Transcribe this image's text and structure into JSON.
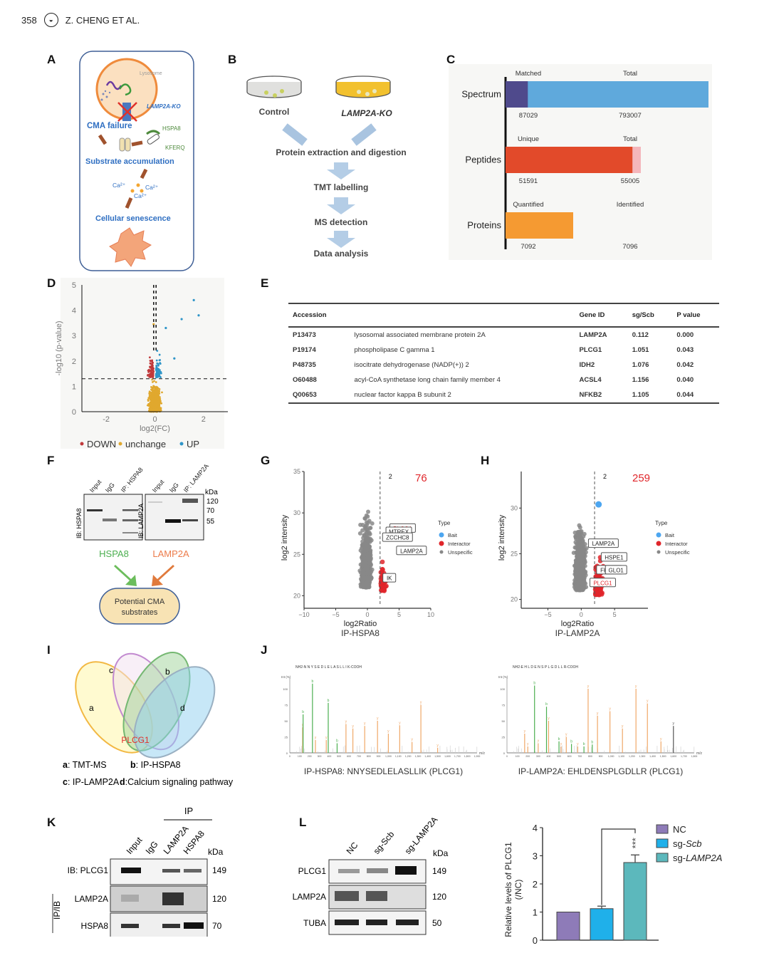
{
  "header": {
    "page_number": "358",
    "journal_icon": "journal-logo-icon",
    "authors": "Z. CHENG ET AL."
  },
  "panels": {
    "A": {
      "label": "A",
      "lysosome": "Lysosome",
      "ko": "LAMP2A-KO",
      "cma_failure": "CMA failure",
      "hspa8": "HSPA8",
      "kferq": "KFERQ",
      "substrate": "Substrate accumulation",
      "ca": "Ca²⁺",
      "senescence": "Cellular senescence"
    },
    "B": {
      "label": "B",
      "control": "Control",
      "ko": "LAMP2A-KO",
      "steps": [
        "Protein extraction and digestion",
        "TMT labelling",
        "MS detection",
        "Data analysis"
      ]
    },
    "C": {
      "label": "C"
    },
    "D": {
      "label": "D"
    },
    "E": {
      "label": "E",
      "columns": [
        "Accession",
        "",
        "Gene ID",
        "sg/Scb",
        "P value"
      ],
      "rows": [
        [
          "P13473",
          "lysosomal associated membrane protein 2A",
          "LAMP2A",
          "0.112",
          "0.000"
        ],
        [
          "P19174",
          "phospholipase C gamma 1",
          "PLCG1",
          "1.051",
          "0.043"
        ],
        [
          "P48735",
          "isocitrate dehydrogenase (NADP(+)) 2",
          "IDH2",
          "1.076",
          "0.042"
        ],
        [
          "O60488",
          "acyl-CoA synthetase long chain family member 4",
          "ACSL4",
          "1.156",
          "0.040"
        ],
        [
          "Q00653",
          "nuclear factor kappa B subunit 2",
          "NFKB2",
          "1.105",
          "0.044"
        ]
      ]
    },
    "F": {
      "label": "F",
      "blot1_lanes": [
        "Input",
        "IgG",
        "IP: HSPA8"
      ],
      "blot1_ib": "IB: HSPA8",
      "blot2_lanes": [
        "Input",
        "IgG",
        "IP: LAMP2A"
      ],
      "blot2_ib": "IB: LAMP2A",
      "kda": "kDa",
      "markers": [
        "120",
        "70",
        "55"
      ],
      "hspa8": "HSPA8",
      "lamp2a": "LAMP2A",
      "box_line1": "Potential CMA",
      "box_line2": "substrates"
    },
    "G": {
      "label": "G"
    },
    "H": {
      "label": "H"
    },
    "I": {
      "label": "I",
      "sets": [
        "a",
        "b",
        "c",
        "d"
      ],
      "center": "PLCG1",
      "legend": [
        {
          "key": "a",
          "text": ": TMT-MS"
        },
        {
          "key": "b",
          "text": ": IP-HSPA8"
        },
        {
          "key": "c",
          "text": ": IP-LAMP2A"
        },
        {
          "key": "d",
          "text": ":Calcium signaling pathway"
        }
      ]
    },
    "J": {
      "label": "J",
      "left_caption": "IP-HSPA8: NNYSEDLELASLLIK (PLCG1)",
      "right_caption": "IP-LAMP2A: EHLDENSPLGDLLR (PLCG1)",
      "left_seq": "NH2-N N Y S E D L E L A S L L I K-COOH",
      "right_seq": "NH2-E H L D E N S P L G D L L R-COOH",
      "xunit": "m/z",
      "yunit": "Int (%)"
    },
    "K": {
      "label": "K",
      "ip": "IP",
      "lanes": [
        "Input",
        "IgG",
        "LAMP2A",
        "HSPA8"
      ],
      "kda": "kDa",
      "rows": [
        {
          "name": "IB: PLCG1",
          "kda": "149"
        },
        {
          "name": "LAMP2A",
          "kda": "120"
        },
        {
          "name": "HSPA8",
          "kda": "70"
        }
      ],
      "ipib": "IP/IB"
    },
    "L": {
      "label": "L",
      "lanes": [
        "NC",
        "sg-Scb",
        "sg-LAMP2A"
      ],
      "kda": "kDa",
      "rows": [
        {
          "name": "PLCG1",
          "kda": "149"
        },
        {
          "name": "LAMP2A",
          "kda": "120"
        },
        {
          "name": "TUBA",
          "kda": "50"
        }
      ]
    }
  },
  "chart_data": [
    {
      "id": "C",
      "type": "bar",
      "orientation": "horizontal",
      "categories": [
        "Spectrum",
        "Peptides",
        "Proteins"
      ],
      "series": [
        {
          "name": "Matched / Unique / Quantified",
          "labels": [
            "Matched",
            "Unique",
            "Quantified"
          ],
          "values": [
            87029,
            51591,
            7092
          ],
          "colors": [
            "#4f4a8c",
            "#e24a2a",
            "#f59a32"
          ]
        },
        {
          "name": "Total / Total / Identified",
          "labels": [
            "Total",
            "Total",
            "Identified"
          ],
          "values": [
            793007,
            55005,
            7096
          ],
          "colors": [
            "#5fa9dc",
            "#f4b6bb",
            "#f59a32"
          ]
        }
      ],
      "note": "each bar scaled within its own row"
    },
    {
      "id": "D",
      "type": "scatter",
      "title": "",
      "xlabel": "log2(FC)",
      "ylabel": "-log10 (p-value)",
      "xlim": [
        -3,
        3
      ],
      "ylim": [
        0,
        5
      ],
      "xticks": [
        -2,
        0,
        2
      ],
      "yticks": [
        0,
        1,
        2,
        3,
        4,
        5
      ],
      "threshold_y": 1.3,
      "legend": [
        {
          "name": "DOWN",
          "color": "#c0393b"
        },
        {
          "name": "unchange",
          "color": "#e0a82e"
        },
        {
          "name": "UP",
          "color": "#2f95c8"
        }
      ],
      "highlighted_points": [
        [
          1.6,
          4.4
        ],
        [
          1.8,
          3.8
        ],
        [
          1.1,
          3.65
        ],
        [
          0.45,
          3.3
        ],
        [
          0.8,
          2.1
        ],
        [
          -0.05,
          3.45
        ]
      ]
    },
    {
      "id": "G",
      "type": "scatter",
      "subtitle": "IP-HSPA8",
      "xlabel": "log2Ratio",
      "ylabel": "log2 intensity",
      "xlim": [
        -10,
        10
      ],
      "ylim": [
        19,
        35
      ],
      "xticks": [
        -10,
        -5,
        0,
        5,
        10
      ],
      "yticks": [
        20,
        25,
        30,
        35
      ],
      "threshold_x": 2,
      "threshold_label": "2",
      "count": "76",
      "legend_title": "Type",
      "legend": [
        {
          "name": "Bait",
          "color": "#4da6f0"
        },
        {
          "name": "Interactor",
          "color": "#e0262b"
        },
        {
          "name": "Unspecific",
          "color": "#888888"
        }
      ],
      "bait": [
        8.3,
        25.3
      ],
      "labels": [
        {
          "text": "PLCG1",
          "x": 6.9,
          "y": 28.0,
          "red": true
        },
        {
          "text": "MTREX",
          "x": 6.3,
          "y": 27.6,
          "red": false
        },
        {
          "text": "ZCCHC8",
          "x": 6.1,
          "y": 26.9,
          "red": false
        },
        {
          "text": "LAMP2A",
          "x": 8.3,
          "y": 25.3,
          "red": false
        },
        {
          "text": "IK",
          "x": 4.8,
          "y": 22.0,
          "red": false
        }
      ]
    },
    {
      "id": "H",
      "type": "scatter",
      "subtitle": "IP-LAMP2A",
      "xlabel": "log2Ratio",
      "ylabel": "log2 intensity",
      "xlim": [
        -9,
        10
      ],
      "ylim": [
        19.5,
        34
      ],
      "xticks": [
        -5,
        0,
        5
      ],
      "yticks": [
        20,
        25,
        30
      ],
      "threshold_x": 2,
      "threshold_label": "2",
      "count": "259",
      "legend_title": "Type",
      "legend": [
        {
          "name": "Bait",
          "color": "#4da6f0"
        },
        {
          "name": "Interactor",
          "color": "#e0262b"
        },
        {
          "name": "Unspecific",
          "color": "#888888"
        }
      ],
      "bait": [
        2.6,
        30.4
      ],
      "labels": [
        {
          "text": "LAMP2A",
          "x": 4.6,
          "y": 26.0,
          "red": false
        },
        {
          "text": "HSPE1",
          "x": 6.2,
          "y": 24.5,
          "red": false
        },
        {
          "text": "FKBP4",
          "x": 5.5,
          "y": 23.1,
          "red": false
        },
        {
          "text": "GLO1",
          "x": 6.5,
          "y": 23.1,
          "red": false
        },
        {
          "text": "PLCG1",
          "x": 4.5,
          "y": 21.7,
          "red": true
        }
      ]
    },
    {
      "id": "J-left",
      "type": "bar",
      "xlabel": "m/z",
      "xlim": [
        0,
        1900
      ],
      "ylim": [
        0,
        110
      ],
      "peaks": [
        [
          130,
          40,
          "o"
        ],
        [
          135,
          60,
          "g"
        ],
        [
          230,
          108,
          "g"
        ],
        [
          260,
          20,
          "o"
        ],
        [
          370,
          20,
          "o"
        ],
        [
          390,
          78,
          "g"
        ],
        [
          480,
          15,
          "g"
        ],
        [
          570,
          45,
          "o"
        ],
        [
          640,
          38,
          "o"
        ],
        [
          760,
          42,
          "o"
        ],
        [
          890,
          50,
          "o"
        ],
        [
          1000,
          30,
          "o"
        ],
        [
          1115,
          43,
          "o"
        ],
        [
          1240,
          17,
          "o"
        ],
        [
          1330,
          75,
          "o"
        ],
        [
          1500,
          8,
          "o"
        ]
      ]
    },
    {
      "id": "J-right",
      "type": "bar",
      "xlabel": "m/z",
      "xlim": [
        0,
        1800
      ],
      "ylim": [
        0,
        110
      ],
      "peaks": [
        [
          170,
          30,
          "o"
        ],
        [
          200,
          10,
          "o"
        ],
        [
          265,
          105,
          "g"
        ],
        [
          300,
          15,
          "o"
        ],
        [
          380,
          72,
          "g"
        ],
        [
          400,
          50,
          "o"
        ],
        [
          500,
          18,
          "g"
        ],
        [
          520,
          10,
          "o"
        ],
        [
          570,
          25,
          "o"
        ],
        [
          620,
          14,
          "g"
        ],
        [
          680,
          10,
          "o"
        ],
        [
          740,
          10,
          "g"
        ],
        [
          780,
          100,
          "o"
        ],
        [
          820,
          13,
          "g"
        ],
        [
          870,
          58,
          "o"
        ],
        [
          990,
          65,
          "o"
        ],
        [
          1110,
          38,
          "o"
        ],
        [
          1240,
          100,
          "o"
        ],
        [
          1350,
          77,
          "o"
        ],
        [
          1480,
          18,
          "o"
        ],
        [
          1600,
          42,
          "k"
        ]
      ]
    },
    {
      "id": "L-bar",
      "type": "bar",
      "categories": [
        "NC",
        "sg-Scb",
        "sg-LAMP2A"
      ],
      "values": [
        1.0,
        1.12,
        2.76
      ],
      "errors": [
        0,
        0.09,
        0.27
      ],
      "colors": [
        "#8e7bb8",
        "#1fb0ea",
        "#5cb8bc"
      ],
      "ylabel": "Relative levels of PLCG1 (/NC)",
      "ylim": [
        0,
        4
      ],
      "yticks": [
        0,
        1,
        2,
        3,
        4
      ],
      "significance": "***",
      "legend": [
        "NC",
        "sg-Scb",
        "sg-LAMP2A"
      ]
    }
  ]
}
